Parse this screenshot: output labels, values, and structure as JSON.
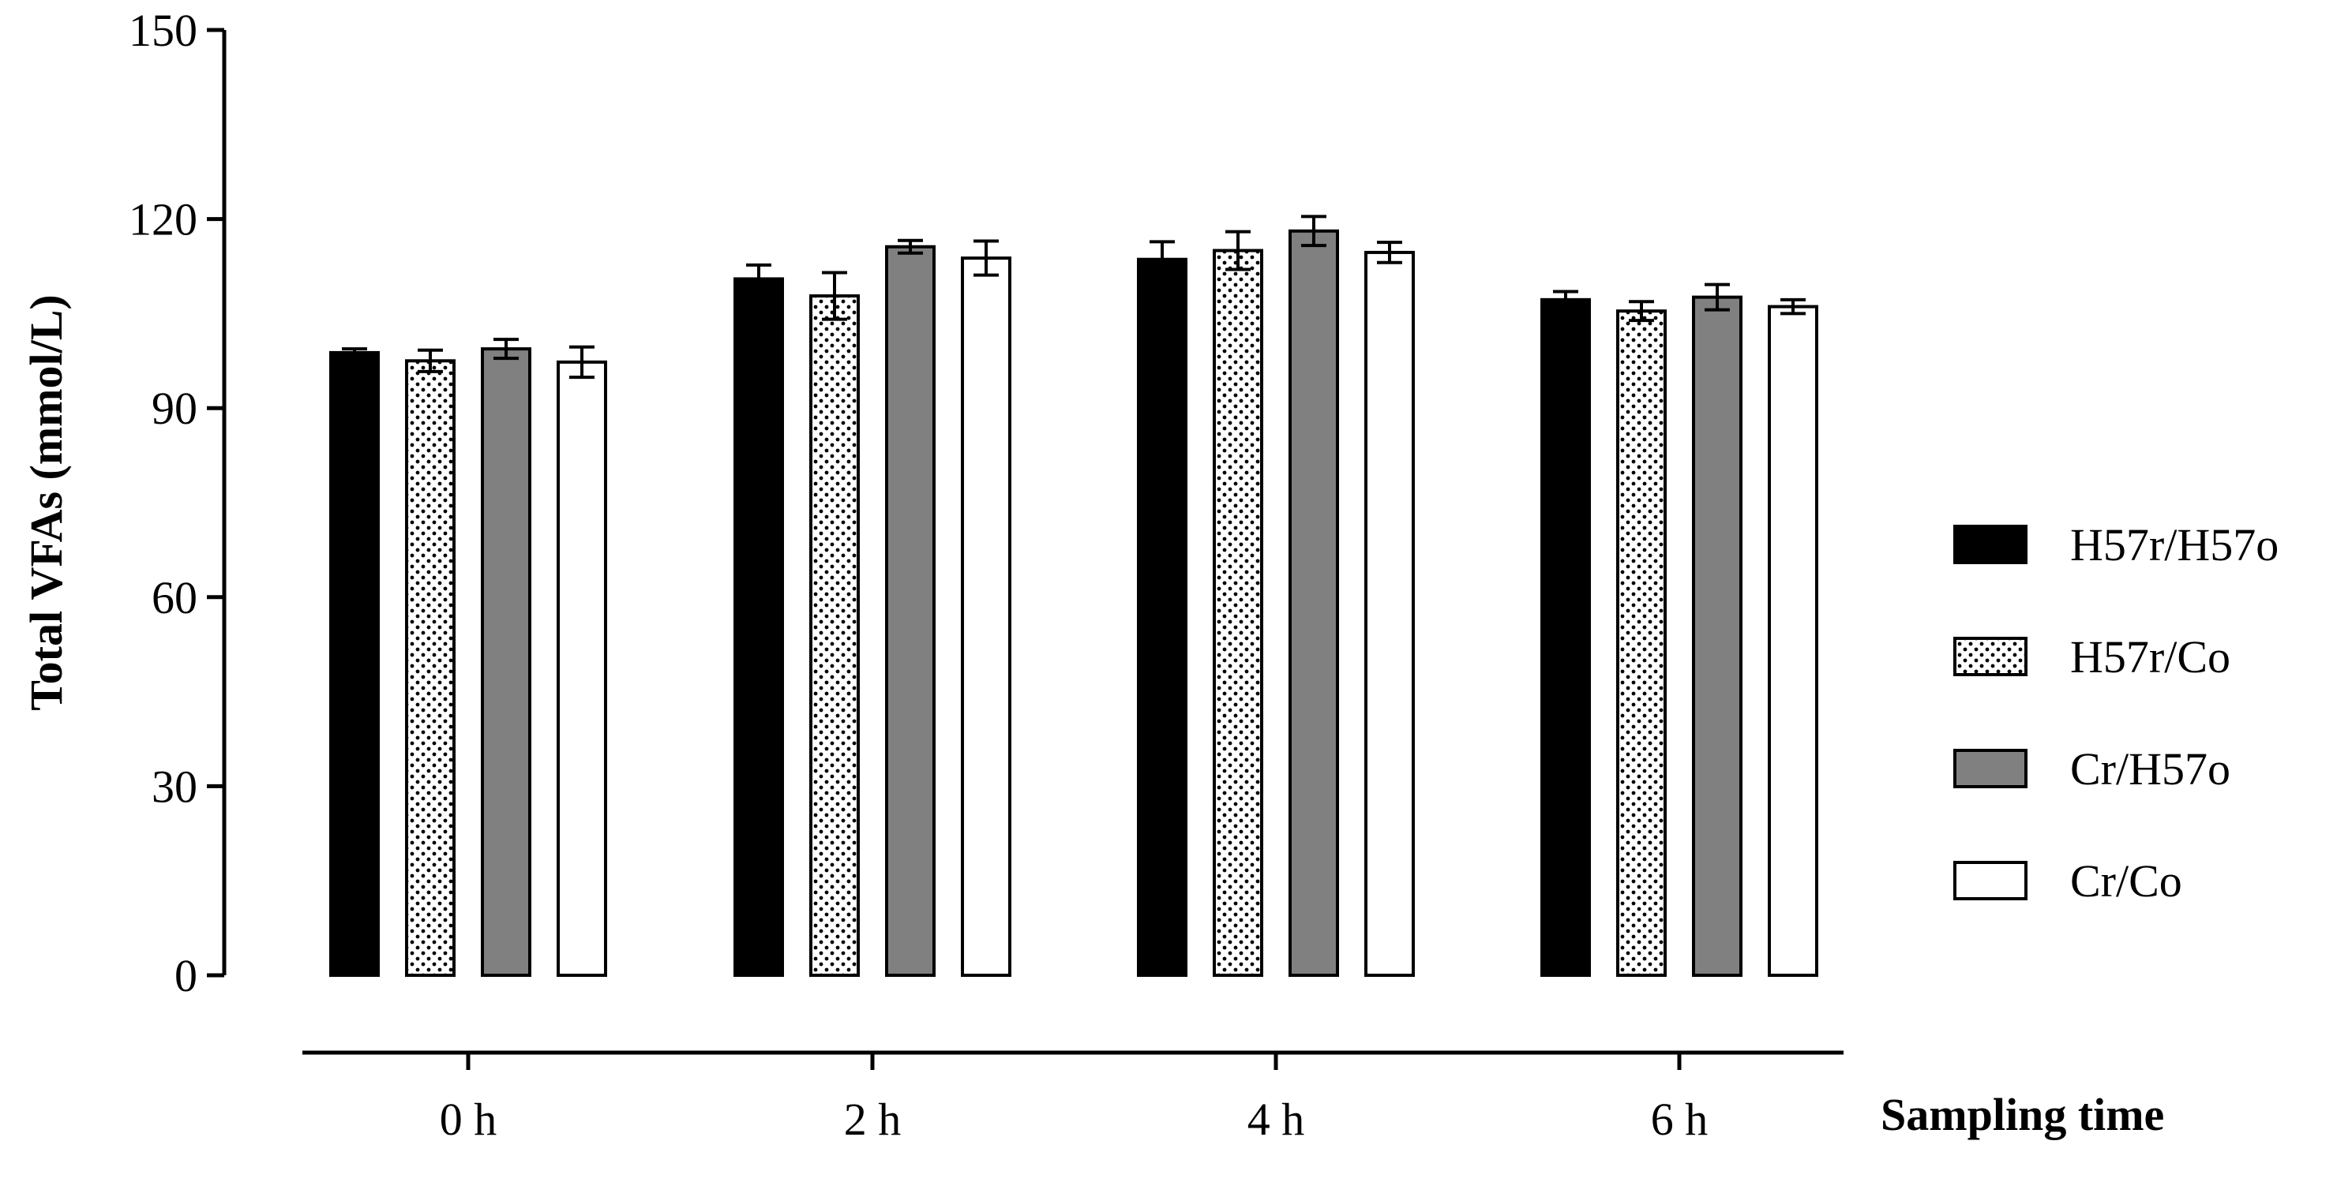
{
  "chart_data": {
    "type": "bar",
    "title": "",
    "ylabel": "Total VFAs (mmol/L)",
    "xlabel": "Sampling time",
    "ylim": [
      0,
      150
    ],
    "yticks": [
      0,
      30,
      60,
      90,
      120,
      150
    ],
    "categories": [
      "0 h",
      "2 h",
      "4 h",
      "6 h"
    ],
    "series": [
      {
        "name": "H57r/H57o",
        "fill": "black",
        "values": [
          98.8,
          110.5,
          113.6,
          107.2
        ],
        "errors": [
          0.6,
          2.2,
          2.8,
          1.3
        ]
      },
      {
        "name": "H57r/Co",
        "fill": "white-dotted",
        "values": [
          97.5,
          107.8,
          115.0,
          105.4
        ],
        "errors": [
          1.7,
          3.7,
          3.0,
          1.5
        ]
      },
      {
        "name": "Cr/H57o",
        "fill": "gray",
        "values": [
          99.4,
          115.6,
          118.1,
          107.6
        ],
        "errors": [
          1.5,
          1.0,
          2.3,
          2.0
        ]
      },
      {
        "name": "Cr/Co",
        "fill": "white",
        "values": [
          97.3,
          113.8,
          114.7,
          106.1
        ],
        "errors": [
          2.4,
          2.7,
          1.6,
          1.1
        ]
      }
    ],
    "error_bars": true,
    "grid": false,
    "legend_position": "right"
  },
  "colors": {
    "black": "#000000",
    "gray": "#808080",
    "white": "#ffffff",
    "dot": "#000000"
  }
}
